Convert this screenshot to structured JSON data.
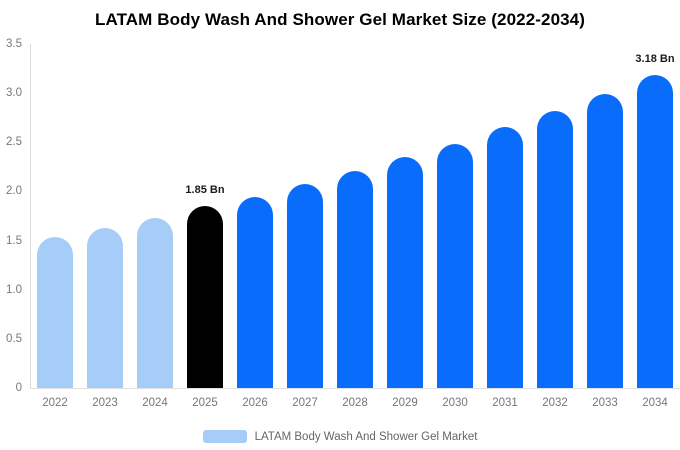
{
  "chart_data": {
    "type": "bar",
    "title": "LATAM Body Wash And Shower Gel Market Size (2022-2034)",
    "categories": [
      "2022",
      "2023",
      "2024",
      "2025",
      "2026",
      "2027",
      "2028",
      "2029",
      "2030",
      "2031",
      "2032",
      "2033",
      "2034"
    ],
    "values": [
      1.54,
      1.63,
      1.73,
      1.85,
      1.94,
      2.08,
      2.21,
      2.35,
      2.48,
      2.66,
      2.82,
      2.99,
      3.18
    ],
    "unit": "Bn",
    "ylim": [
      0,
      3.5
    ],
    "yticks": [
      "3.5",
      "3.0",
      "2.5",
      "2.0",
      "1.5",
      "1.0",
      "0.5",
      "0"
    ],
    "grid": false,
    "legend": {
      "label": "LATAM Body Wash And Shower Gel Market",
      "position": "bottom"
    },
    "annotations": [
      {
        "category": "2025",
        "text": "1.85 Bn"
      },
      {
        "category": "2034",
        "text": "3.18 Bn"
      }
    ],
    "colors": {
      "historical": "#A6CDF8",
      "base_year": "#000000",
      "forecast": "#0A6CFA",
      "axis_line": "#DCDCDC",
      "tick_text": "#777777",
      "legend_text": "#666666",
      "annotation_text": "#1A1A1A",
      "title_text": "#000000",
      "background": "#FFFFFF"
    },
    "bar_colors": [
      "#A6CDF8",
      "#A6CDF8",
      "#A6CDF8",
      "#000000",
      "#0A6CFA",
      "#0A6CFA",
      "#0A6CFA",
      "#0A6CFA",
      "#0A6CFA",
      "#0A6CFA",
      "#0A6CFA",
      "#0A6CFA",
      "#0A6CFA"
    ]
  }
}
